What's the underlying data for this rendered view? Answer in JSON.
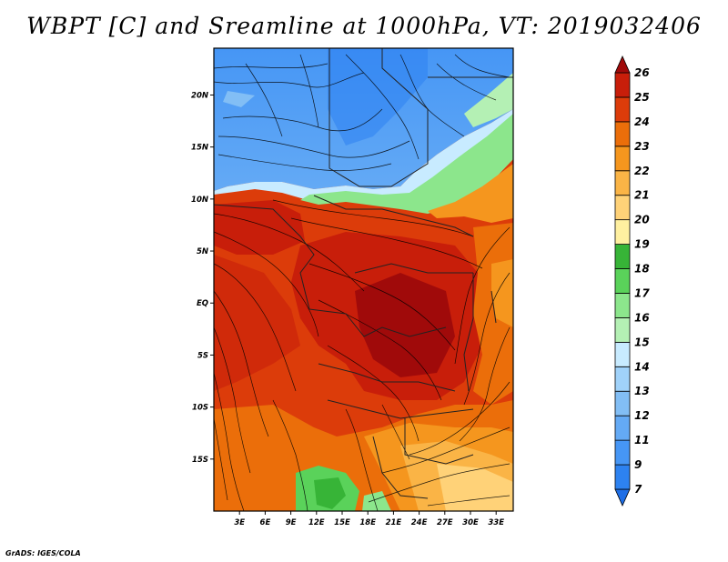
{
  "title": "WBPT [C] and Sreamline at 1000hPa, VT: 2019032406",
  "footer": "GrADS: IGES/COLA",
  "map": {
    "lat_ticks": [
      "20N",
      "15N",
      "10N",
      "5N",
      "EQ",
      "5S",
      "10S",
      "15S"
    ],
    "lon_ticks": [
      "3E",
      "6E",
      "9E",
      "12E",
      "15E",
      "18E",
      "21E",
      "24E",
      "27E",
      "30E",
      "33E"
    ],
    "lat_range": [
      -20,
      24.5
    ],
    "lon_range": [
      0,
      35
    ]
  },
  "colorbar": {
    "labels": [
      "7",
      "9",
      "11",
      "12",
      "13",
      "14",
      "15",
      "16",
      "17",
      "18",
      "19",
      "20",
      "21",
      "22",
      "23",
      "24",
      "25",
      "26"
    ],
    "colors": [
      "#1e6ee6",
      "#2d82f0",
      "#4696f5",
      "#64aaf5",
      "#82bef5",
      "#a0d2fa",
      "#c8ebff",
      "#b4f0b4",
      "#8ce68c",
      "#5ad25a",
      "#37b437",
      "#fff0a0",
      "#ffd278",
      "#fab446",
      "#f5961e",
      "#eb6e0a",
      "#dc3c0a",
      "#c81e0a",
      "#a00a0a"
    ]
  }
}
